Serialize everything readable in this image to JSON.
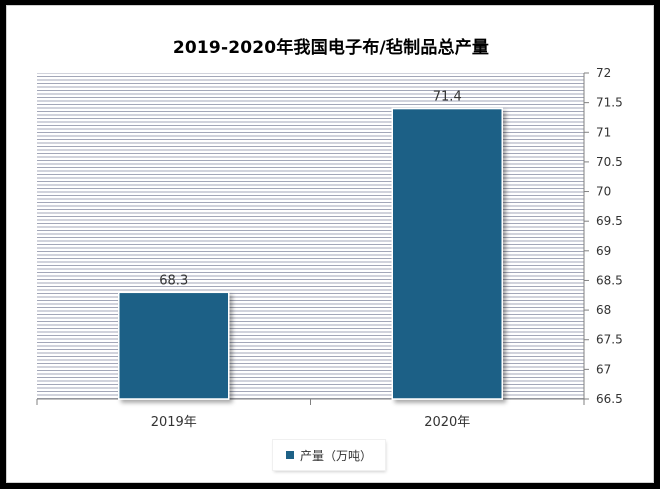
{
  "chart_data": {
    "type": "bar",
    "title": "2019-2020年我国电子布/毡制品总产量",
    "categories": [
      "2019年",
      "2020年"
    ],
    "series": [
      {
        "name": "产量（万吨）",
        "values": [
          68.3,
          71.4
        ],
        "color": "#1d6186"
      }
    ],
    "data_labels": [
      "68.3",
      "71.4"
    ],
    "y_ticks": [
      "66.5",
      "67",
      "67.5",
      "68",
      "68.5",
      "69",
      "69.5",
      "70",
      "70.5",
      "71",
      "71.5",
      "72"
    ],
    "ylim": [
      66.5,
      72
    ],
    "y_axis_side": "right",
    "grid": true,
    "legend_position": "bottom"
  }
}
